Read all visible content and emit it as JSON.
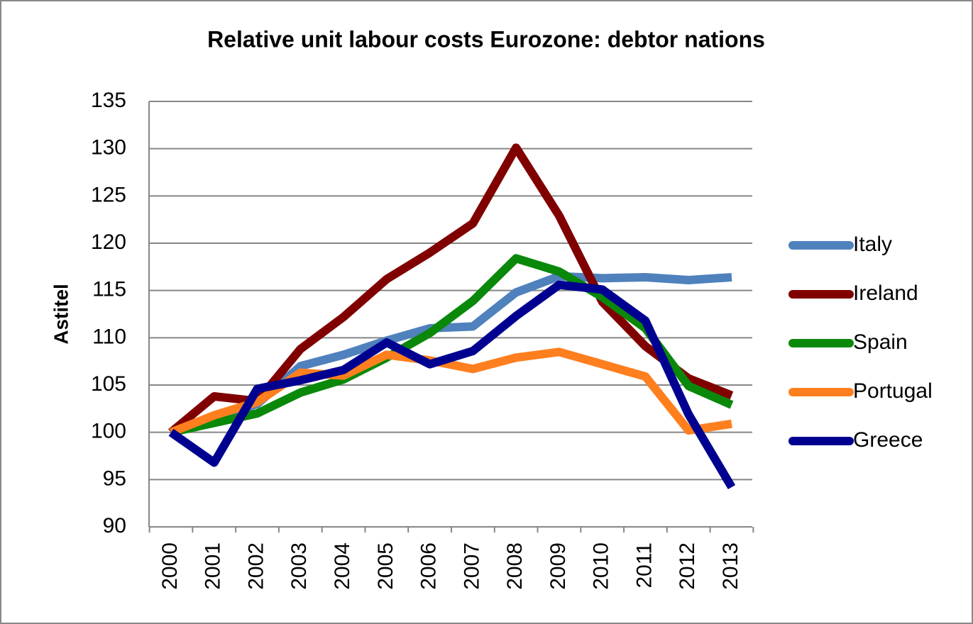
{
  "chart_data": {
    "type": "line",
    "title": "Relative unit labour costs Eurozone: debtor nations",
    "y_label": "Astitel",
    "categories": [
      "2000",
      "2001",
      "2002",
      "2003",
      "2004",
      "2005",
      "2006",
      "2007",
      "2008",
      "2009",
      "2010",
      "2011",
      "2012",
      "2013"
    ],
    "series": [
      {
        "name": "Italy",
        "color": "#4f81bd",
        "values": [
          100,
          101.5,
          103,
          107,
          108.2,
          109.7,
          111,
          111.2,
          114.8,
          116.5,
          116.3,
          116.4,
          116.1,
          116.4
        ]
      },
      {
        "name": "Ireland",
        "color": "#800000",
        "values": [
          100,
          103.8,
          103.3,
          108.8,
          112.2,
          116.2,
          119,
          122.1,
          130.1,
          122.9,
          113.8,
          109.1,
          105.7,
          103.9
        ]
      },
      {
        "name": "Spain",
        "color": "#0a880a",
        "values": [
          100,
          101,
          102,
          104.2,
          105.6,
          107.9,
          110.5,
          113.9,
          118.4,
          117,
          114.3,
          111,
          104.9,
          102.9
        ]
      },
      {
        "name": "Portugal",
        "color": "#ff7f1f",
        "values": [
          100,
          101.8,
          103.2,
          106.3,
          106,
          108.2,
          107.6,
          106.7,
          107.9,
          108.5,
          107.2,
          105.9,
          100.2,
          100.9
        ]
      },
      {
        "name": "Greece",
        "color": "#000090",
        "values": [
          100,
          96.8,
          104.6,
          105.5,
          106.6,
          109.5,
          107.2,
          108.6,
          112.3,
          115.6,
          115.1,
          111.8,
          101.9,
          94.2
        ]
      }
    ],
    "ylim": [
      90,
      135
    ],
    "yticks": [
      90,
      95,
      100,
      105,
      110,
      115,
      120,
      125,
      130,
      135
    ],
    "grid": true,
    "legend": "right"
  }
}
